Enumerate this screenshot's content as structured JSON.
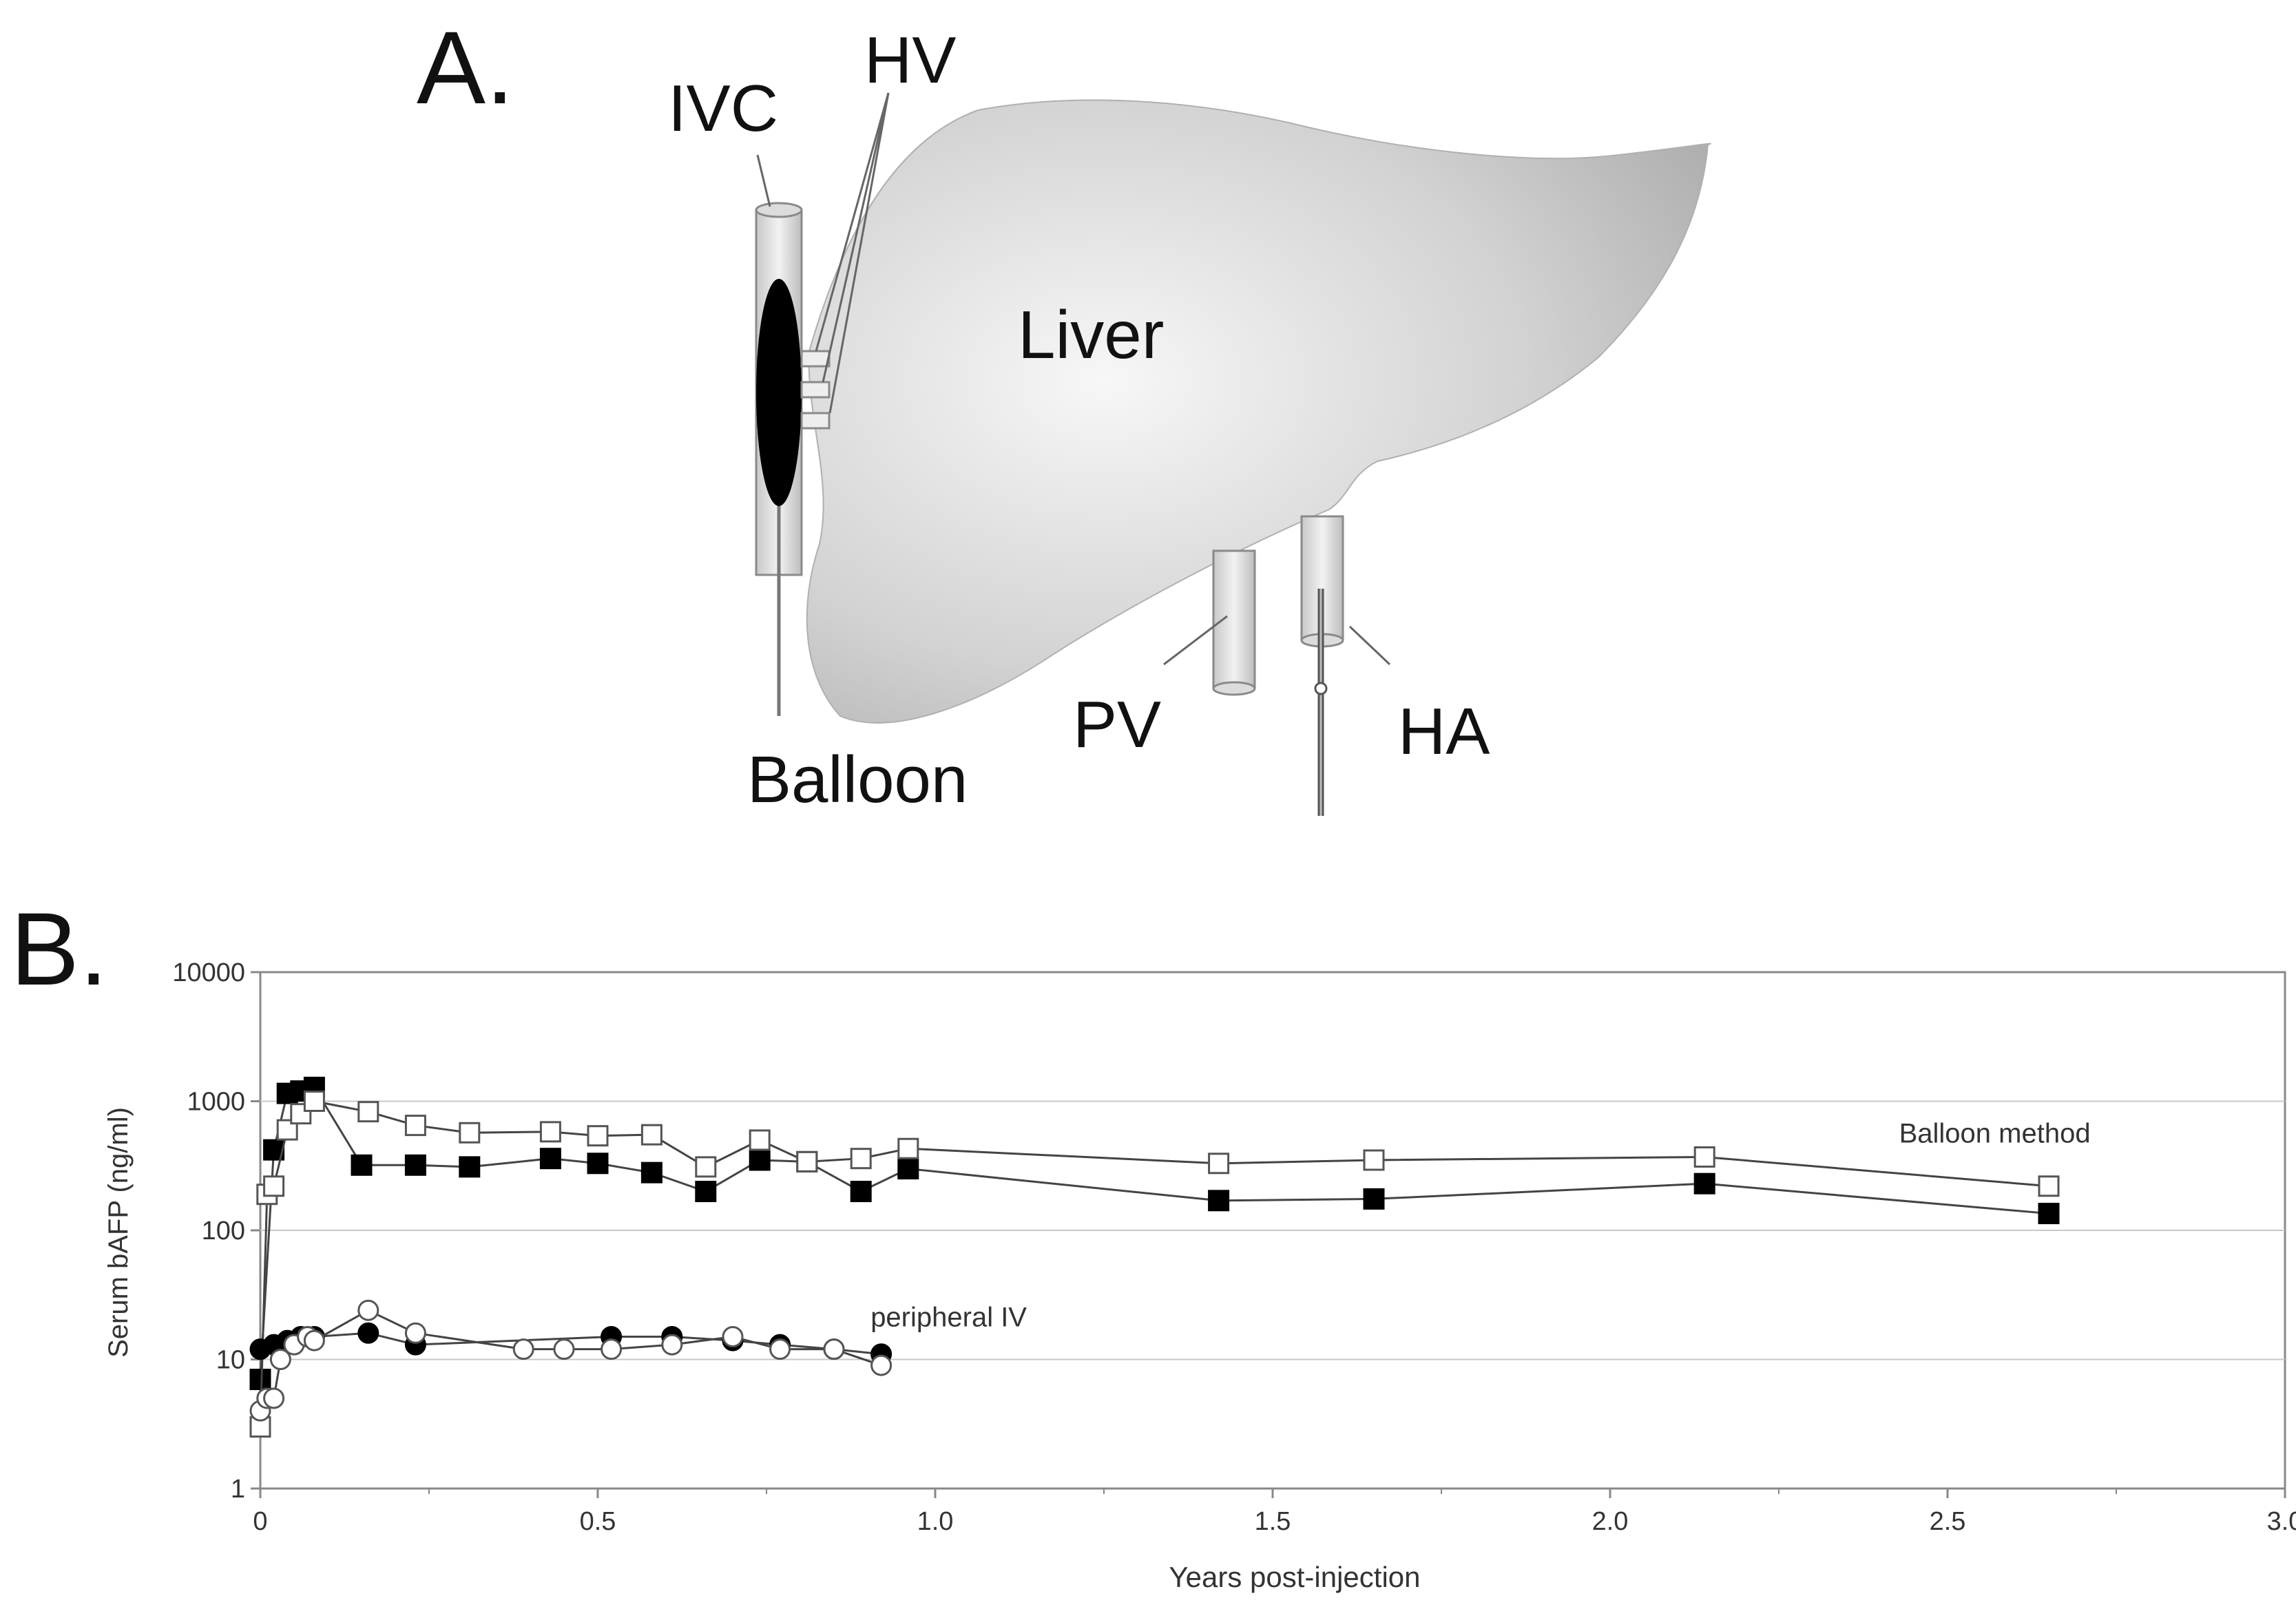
{
  "panel_a": {
    "label": "A.",
    "organ_label": "Liver",
    "vessel_labels": {
      "ivc": "IVC",
      "hv": "HV",
      "pv": "PV",
      "ha": "HA",
      "balloon": "Balloon"
    },
    "colors": {
      "liver_light": "#f4f4f4",
      "liver_dark": "#a9a9a9",
      "balloon": "#000000"
    }
  },
  "panel_b": {
    "label": "B."
  },
  "chart_data": {
    "type": "scatter",
    "xlabel": "Years post-injection",
    "ylabel": "Serum bAFP (ng/ml)",
    "xlim": [
      0,
      3.0
    ],
    "ylim": [
      1,
      10000
    ],
    "yscale": "log",
    "xticks": [
      "0",
      "0.5",
      "1.0",
      "1.5",
      "2.0",
      "2.5",
      "3.0"
    ],
    "xtick_values": [
      0,
      0.5,
      1.0,
      1.5,
      2.0,
      2.5,
      3.0
    ],
    "yticks": [
      "1",
      "10",
      "100",
      "1000",
      "10000"
    ],
    "ytick_values": [
      1,
      10,
      100,
      1000,
      10000
    ],
    "grid": "horizontal",
    "annotations": [
      {
        "text": "Balloon method",
        "x": 2.57,
        "y": 480
      },
      {
        "text": "peripheral IV",
        "x": 1.02,
        "y": 18
      }
    ],
    "series": [
      {
        "marker": "filled-square",
        "line": true,
        "x": [
          0.0,
          0.02,
          0.04,
          0.06,
          0.08,
          0.15,
          0.23,
          0.31,
          0.43,
          0.5,
          0.58,
          0.66,
          0.74,
          0.81,
          0.89,
          0.96,
          1.42,
          1.65,
          2.14,
          2.65
        ],
        "y": [
          7,
          420,
          1150,
          1200,
          1280,
          320,
          320,
          310,
          360,
          330,
          280,
          200,
          350,
          340,
          200,
          300,
          170,
          175,
          230,
          135
        ]
      },
      {
        "marker": "open-square",
        "line": true,
        "x": [
          0.0,
          0.01,
          0.02,
          0.04,
          0.06,
          0.08,
          0.16,
          0.23,
          0.31,
          0.43,
          0.5,
          0.58,
          0.66,
          0.74,
          0.81,
          0.89,
          0.96,
          1.42,
          1.65,
          2.14,
          2.65
        ],
        "y": [
          3,
          190,
          220,
          600,
          800,
          1000,
          830,
          650,
          570,
          580,
          540,
          550,
          310,
          500,
          340,
          360,
          430,
          330,
          350,
          370,
          220
        ]
      },
      {
        "marker": "filled-circle",
        "line": true,
        "x": [
          0.0,
          0.02,
          0.04,
          0.06,
          0.08,
          0.16,
          0.23,
          0.52,
          0.61,
          0.7,
          0.77,
          0.85,
          0.92
        ],
        "y": [
          12,
          13,
          14,
          15,
          15,
          16,
          13,
          15,
          15,
          14,
          13,
          12,
          11
        ]
      },
      {
        "marker": "open-circle",
        "line": true,
        "x": [
          0.0,
          0.01,
          0.02,
          0.03,
          0.05,
          0.07,
          0.08,
          0.16,
          0.23,
          0.39,
          0.45,
          0.52,
          0.61,
          0.7,
          0.77,
          0.85,
          0.92
        ],
        "y": [
          4,
          5,
          5,
          10,
          13,
          15,
          14,
          24,
          16,
          12,
          12,
          12,
          13,
          15,
          12,
          12,
          9
        ]
      }
    ]
  }
}
